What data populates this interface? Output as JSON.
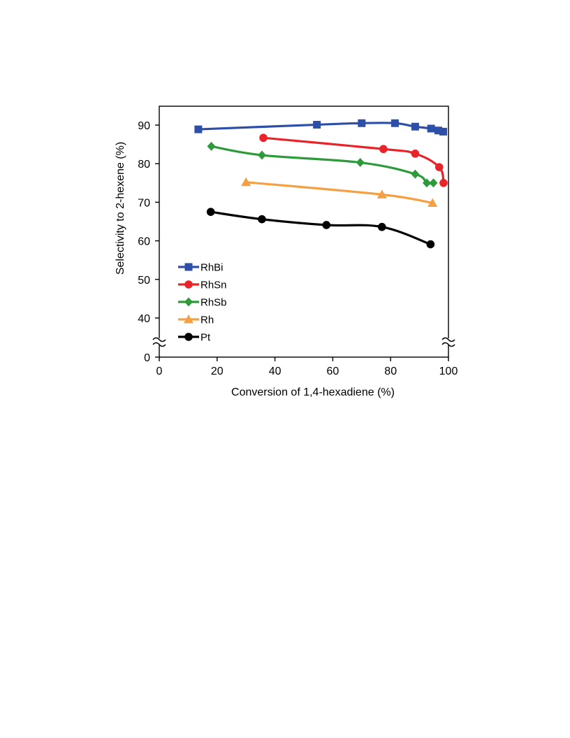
{
  "chart_data": {
    "type": "line",
    "xlabel": "Conversion of 1,4-hexadiene (%)",
    "ylabel": "Selectivity to 2-hexene (%)",
    "xlim": [
      0,
      100
    ],
    "ylim": [
      35,
      95
    ],
    "x_ticks": [
      "0",
      "20",
      "40",
      "60",
      "80",
      "100"
    ],
    "y_ticks": [
      "40",
      "50",
      "60",
      "70",
      "80",
      "90"
    ],
    "y_axis_break": {
      "from": 0,
      "to": 35,
      "label": "0"
    },
    "grid": false,
    "legend_position": "bottom-left",
    "series": [
      {
        "name": "RhBi",
        "color": "#2E4FA8",
        "marker": "square",
        "x": [
          13.5,
          54.5,
          70,
          81.5,
          88.5,
          94,
          96.5,
          98.2
        ],
        "y": [
          88.9,
          90.1,
          90.5,
          90.5,
          89.6,
          89.1,
          88.6,
          88.3
        ]
      },
      {
        "name": "RhSn",
        "color": "#E8242A",
        "marker": "circle",
        "x": [
          36,
          77.5,
          88.5,
          96.8,
          98.3
        ],
        "y": [
          86.7,
          83.8,
          82.6,
          79.1,
          75.0
        ]
      },
      {
        "name": "RhSb",
        "color": "#2E9B3A",
        "marker": "diamond",
        "x": [
          18,
          35.5,
          69.5,
          88.5,
          92.5,
          94.8
        ],
        "y": [
          84.5,
          82.2,
          80.3,
          77.3,
          75.0,
          75.0
        ]
      },
      {
        "name": "Rh",
        "color": "#F5A044",
        "marker": "triangle",
        "x": [
          30,
          77,
          94.5
        ],
        "y": [
          75.2,
          72.0,
          69.8
        ]
      },
      {
        "name": "Pt",
        "color": "#000000",
        "marker": "circle",
        "x": [
          17.8,
          35.5,
          57.8,
          77,
          93.8
        ],
        "y": [
          67.5,
          65.6,
          64.1,
          63.6,
          59.1
        ]
      }
    ]
  }
}
